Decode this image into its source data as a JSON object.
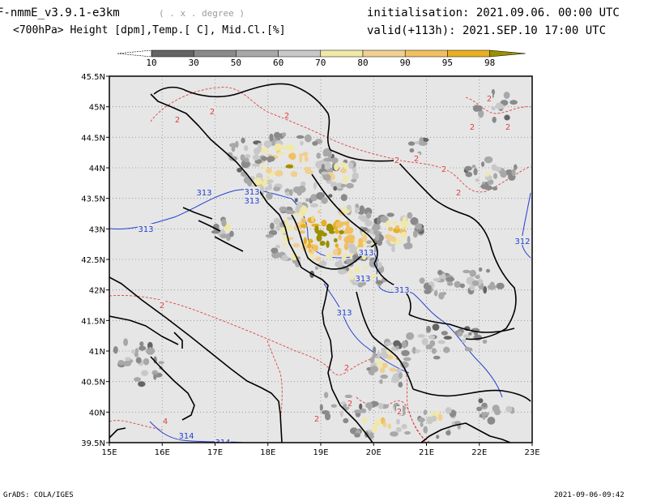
{
  "header": {
    "model": "F-nmmE_v3.9.1-e3km",
    "grid_note": "( . x . degree )",
    "fields": "<700hPa> Height [dpm],Temp.[ C], Mid.Cl.[%]",
    "init": "initialisation: 2021.09.06. 00:00 UTC",
    "valid": "valid(+113h): 2021.SEP.10 17:00 UTC"
  },
  "colorbar": {
    "labels": [
      "10",
      "30",
      "50",
      "60",
      "70",
      "80",
      "90",
      "95",
      "98"
    ],
    "colors": [
      "#ffffff",
      "#646464",
      "#8a8a8a",
      "#a8a8a8",
      "#c8c8c8",
      "#f0e8a8",
      "#f0d090",
      "#f0c060",
      "#e8b020",
      "#9a9000"
    ]
  },
  "axes": {
    "lat_labels": [
      "45.5N",
      "45N",
      "44.5N",
      "44N",
      "43.5N",
      "43N",
      "42.5N",
      "42N",
      "41.5N",
      "41N",
      "40.5N",
      "40N",
      "39.5N"
    ],
    "lon_labels": [
      "15E",
      "16E",
      "17E",
      "18E",
      "19E",
      "20E",
      "21E",
      "22E",
      "23E"
    ]
  },
  "contour_labels": {
    "height": [
      "313",
      "313",
      "313",
      "313",
      "313",
      "313",
      "313",
      "313",
      "312",
      "314",
      "314"
    ],
    "temperature": [
      "2",
      "2",
      "2",
      "2",
      "2",
      "2",
      "2",
      "2",
      "2",
      "2",
      "2",
      "2",
      "2",
      "2",
      "2",
      "4"
    ]
  },
  "footer": {
    "left": "GrADS: COLA/IGES",
    "right": "2021-09-06-09:42"
  },
  "colors": {
    "map_bg": "#e6e6e6",
    "border": "#000000",
    "height_contour": "#2040d0",
    "temp_contour": "#e04040"
  }
}
